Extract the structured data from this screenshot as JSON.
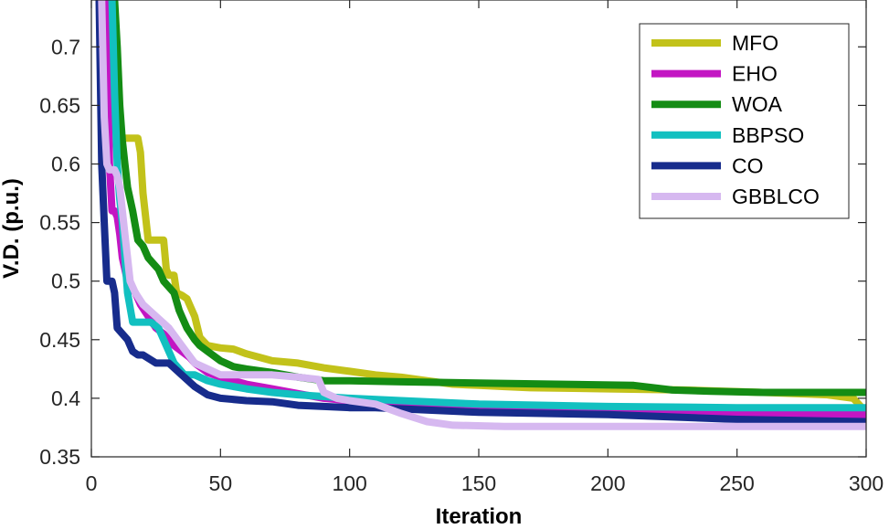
{
  "chart_data": {
    "type": "line",
    "title": "",
    "xlabel": "Iteration",
    "ylabel": "V.D. (p.u.)",
    "xlim": [
      0,
      300
    ],
    "ylim": [
      0.35,
      0.74
    ],
    "xticks": [
      0,
      50,
      100,
      150,
      200,
      250,
      300
    ],
    "yticks": [
      0.35,
      0.4,
      0.45,
      0.5,
      0.55,
      0.6,
      0.65,
      0.7
    ],
    "xtick_labels": [
      "0",
      "50",
      "100",
      "150",
      "200",
      "250",
      "300"
    ],
    "ytick_labels": [
      "0.35",
      "0.4",
      "0.45",
      "0.5",
      "0.55",
      "0.6",
      "0.65",
      "0.7"
    ],
    "legend_position": "top-right",
    "grid": false,
    "series": [
      {
        "name": "MFO",
        "color": "#C2C21A",
        "x": [
          8,
          9,
          11,
          12,
          13,
          15,
          18,
          19,
          20,
          22,
          25,
          28,
          29,
          30,
          32,
          33,
          35,
          37,
          38,
          40,
          42,
          45,
          50,
          55,
          60,
          65,
          70,
          80,
          90,
          100,
          110,
          120,
          130,
          140,
          150,
          160,
          170,
          200,
          230,
          260,
          285,
          295,
          300
        ],
        "y": [
          0.74,
          0.66,
          0.63,
          0.622,
          0.622,
          0.622,
          0.622,
          0.61,
          0.575,
          0.535,
          0.535,
          0.535,
          0.51,
          0.505,
          0.505,
          0.49,
          0.488,
          0.485,
          0.48,
          0.47,
          0.452,
          0.445,
          0.443,
          0.442,
          0.438,
          0.435,
          0.432,
          0.43,
          0.426,
          0.423,
          0.42,
          0.418,
          0.415,
          0.412,
          0.411,
          0.41,
          0.409,
          0.408,
          0.407,
          0.405,
          0.403,
          0.4,
          0.388
        ]
      },
      {
        "name": "EHO",
        "color": "#C316C3",
        "x": [
          6,
          7,
          8,
          9,
          10,
          11,
          12,
          13,
          14,
          15,
          17,
          19,
          22,
          25,
          28,
          30,
          32,
          35,
          38,
          40,
          45,
          50,
          60,
          70,
          80,
          90,
          100,
          120,
          140,
          160,
          200,
          250,
          300
        ],
        "y": [
          0.74,
          0.6,
          0.56,
          0.56,
          0.555,
          0.54,
          0.52,
          0.51,
          0.5,
          0.495,
          0.49,
          0.48,
          0.47,
          0.46,
          0.455,
          0.45,
          0.445,
          0.44,
          0.435,
          0.43,
          0.422,
          0.418,
          0.412,
          0.408,
          0.404,
          0.4,
          0.398,
          0.395,
          0.392,
          0.391,
          0.389,
          0.387,
          0.386
        ]
      },
      {
        "name": "WOA",
        "color": "#148C14",
        "x": [
          9,
          10,
          11,
          12,
          13,
          14,
          16,
          18,
          20,
          22,
          24,
          26,
          28,
          30,
          32,
          34,
          35,
          37,
          40,
          42,
          45,
          50,
          55,
          60,
          70,
          80,
          90,
          100,
          120,
          150,
          180,
          210,
          225,
          240,
          260,
          300
        ],
        "y": [
          0.74,
          0.7,
          0.65,
          0.62,
          0.6,
          0.58,
          0.56,
          0.535,
          0.53,
          0.52,
          0.515,
          0.51,
          0.5,
          0.495,
          0.49,
          0.475,
          0.47,
          0.46,
          0.45,
          0.445,
          0.44,
          0.432,
          0.427,
          0.425,
          0.422,
          0.418,
          0.415,
          0.415,
          0.414,
          0.413,
          0.412,
          0.411,
          0.407,
          0.406,
          0.405,
          0.405
        ]
      },
      {
        "name": "BBPSO",
        "color": "#12C0C0",
        "x": [
          8,
          9,
          10,
          11,
          12,
          13,
          14,
          16,
          18,
          20,
          23,
          26,
          28,
          30,
          32,
          34,
          36,
          40,
          45,
          50,
          60,
          70,
          80,
          100,
          120,
          150,
          200,
          250,
          300
        ],
        "y": [
          0.74,
          0.66,
          0.6,
          0.57,
          0.55,
          0.52,
          0.49,
          0.465,
          0.465,
          0.465,
          0.465,
          0.46,
          0.45,
          0.44,
          0.43,
          0.425,
          0.42,
          0.42,
          0.415,
          0.412,
          0.408,
          0.405,
          0.403,
          0.4,
          0.398,
          0.395,
          0.393,
          0.392,
          0.392
        ]
      },
      {
        "name": "CO",
        "color": "#172C8C",
        "x": [
          3,
          4,
          5,
          6,
          7,
          8,
          9,
          10,
          12,
          14,
          16,
          18,
          20,
          25,
          30,
          35,
          40,
          45,
          50,
          60,
          70,
          80,
          90,
          100,
          110,
          150,
          200,
          250,
          300
        ],
        "y": [
          0.74,
          0.6,
          0.55,
          0.5,
          0.5,
          0.5,
          0.49,
          0.46,
          0.455,
          0.45,
          0.44,
          0.437,
          0.437,
          0.43,
          0.43,
          0.42,
          0.41,
          0.403,
          0.4,
          0.398,
          0.397,
          0.394,
          0.393,
          0.392,
          0.392,
          0.388,
          0.386,
          0.382,
          0.38
        ]
      },
      {
        "name": "GBBLCO",
        "color": "#D6B8F0",
        "x": [
          4,
          5,
          6,
          7,
          8,
          9,
          10,
          11,
          12,
          13,
          14,
          15,
          17,
          20,
          25,
          30,
          35,
          40,
          45,
          50,
          60,
          70,
          80,
          88,
          90,
          95,
          100,
          110,
          120,
          130,
          140,
          160,
          200,
          250,
          300
        ],
        "y": [
          0.74,
          0.64,
          0.6,
          0.595,
          0.595,
          0.595,
          0.59,
          0.58,
          0.56,
          0.54,
          0.52,
          0.5,
          0.49,
          0.48,
          0.47,
          0.46,
          0.445,
          0.43,
          0.425,
          0.42,
          0.42,
          0.42,
          0.418,
          0.416,
          0.405,
          0.4,
          0.398,
          0.395,
          0.387,
          0.38,
          0.377,
          0.376,
          0.376,
          0.376,
          0.376
        ]
      }
    ]
  }
}
